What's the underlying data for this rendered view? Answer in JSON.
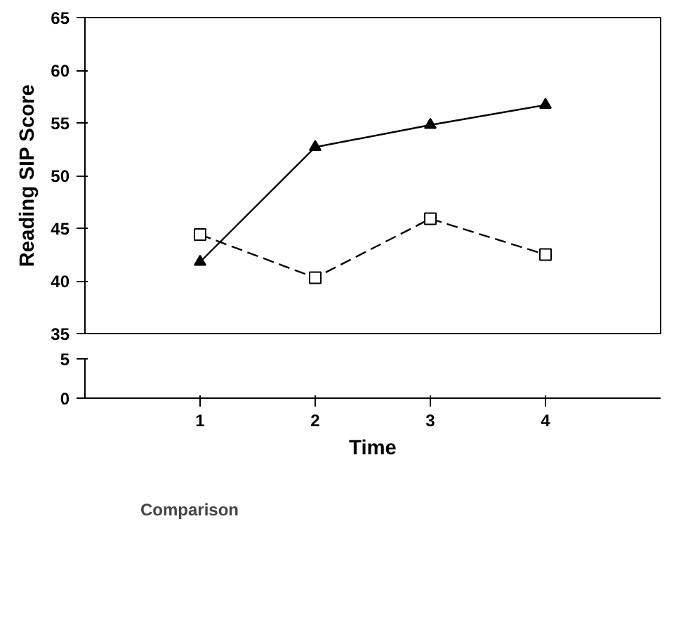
{
  "chart_data": [
    {
      "type": "line",
      "ylabel": "Reading SIP Score",
      "x": [
        1,
        2,
        3,
        4
      ],
      "xlim": [
        0,
        5
      ],
      "xticks": [
        1,
        2,
        3,
        4
      ],
      "ylim": [
        35,
        65
      ],
      "yticks": [
        35,
        40,
        45,
        50,
        55,
        60,
        65
      ],
      "tick_labels": "y",
      "grid": false,
      "legend": "bottom left",
      "series": [
        {
          "color": "#000000",
          "marker": "triangle",
          "line_style": "solid",
          "values": [
            41.8,
            52.7,
            54.8,
            56.7
          ]
        },
        {
          "name": "Comparison",
          "color": "#000000",
          "marker": "square",
          "line_style": "dashed",
          "values": [
            44.4,
            40.3,
            45.9,
            42.5
          ]
        }
      ]
    },
    {
      "type": "line",
      "xlabel": "Time",
      "xlim": [
        0,
        5
      ],
      "xticks": [
        1,
        2,
        3,
        4
      ],
      "ylim": [
        0,
        5
      ],
      "yticks": [
        0,
        5
      ],
      "grid": false
    }
  ]
}
